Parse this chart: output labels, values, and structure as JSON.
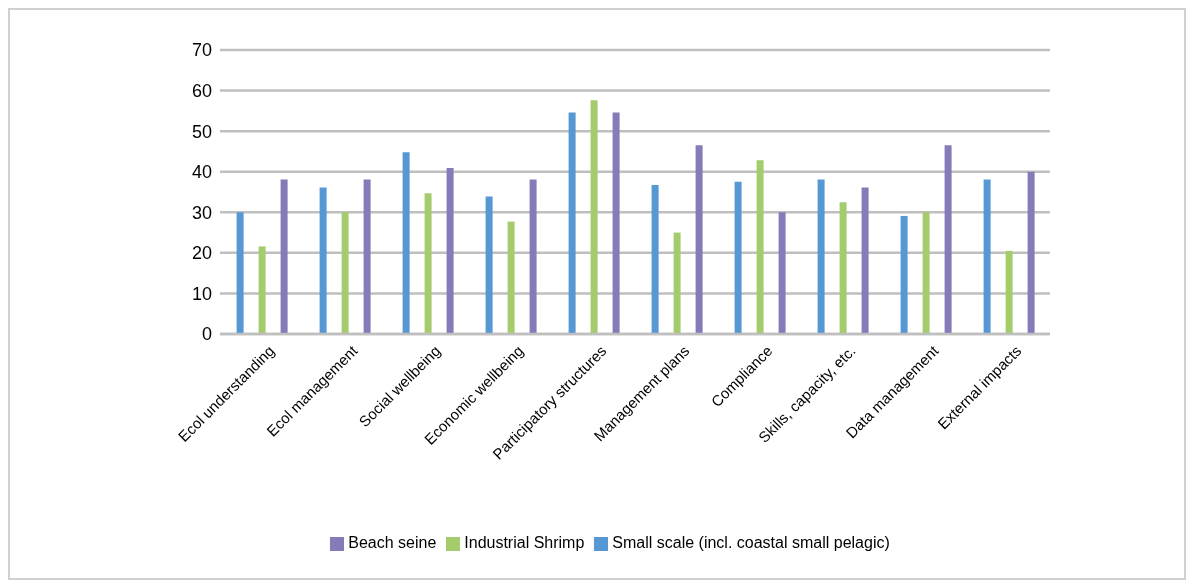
{
  "chart_data": {
    "type": "bar",
    "categories": [
      "Ecol understanding",
      "Ecol management",
      "Social wellbeing",
      "Economic wellbeing",
      "Participatory structures",
      "Management plans",
      "Compliance",
      "Skills, capacity, etc.",
      "Data management",
      "External impacts"
    ],
    "series": [
      {
        "name": "Small scale (incl. coastal small pelagic)",
        "color": "#5698d3",
        "values": [
          30,
          36.1,
          44.8,
          33.9,
          54.6,
          36.7,
          37.5,
          38.1,
          29.1,
          38.1
        ]
      },
      {
        "name": "Industrial Shrimp",
        "color": "#a5cc6c",
        "values": [
          21.6,
          30,
          34.7,
          27.7,
          57.6,
          25,
          42.8,
          32.5,
          30,
          20.5
        ]
      },
      {
        "name": "Beach seine",
        "color": "#867bb8",
        "values": [
          38.1,
          38.1,
          40.9,
          38.1,
          54.6,
          46.5,
          30,
          36.1,
          46.5,
          40
        ]
      }
    ],
    "ylim": [
      0,
      70
    ],
    "yticks": [
      0,
      10,
      20,
      30,
      40,
      50,
      60,
      70
    ],
    "grid": "y",
    "legend": "bottom"
  }
}
